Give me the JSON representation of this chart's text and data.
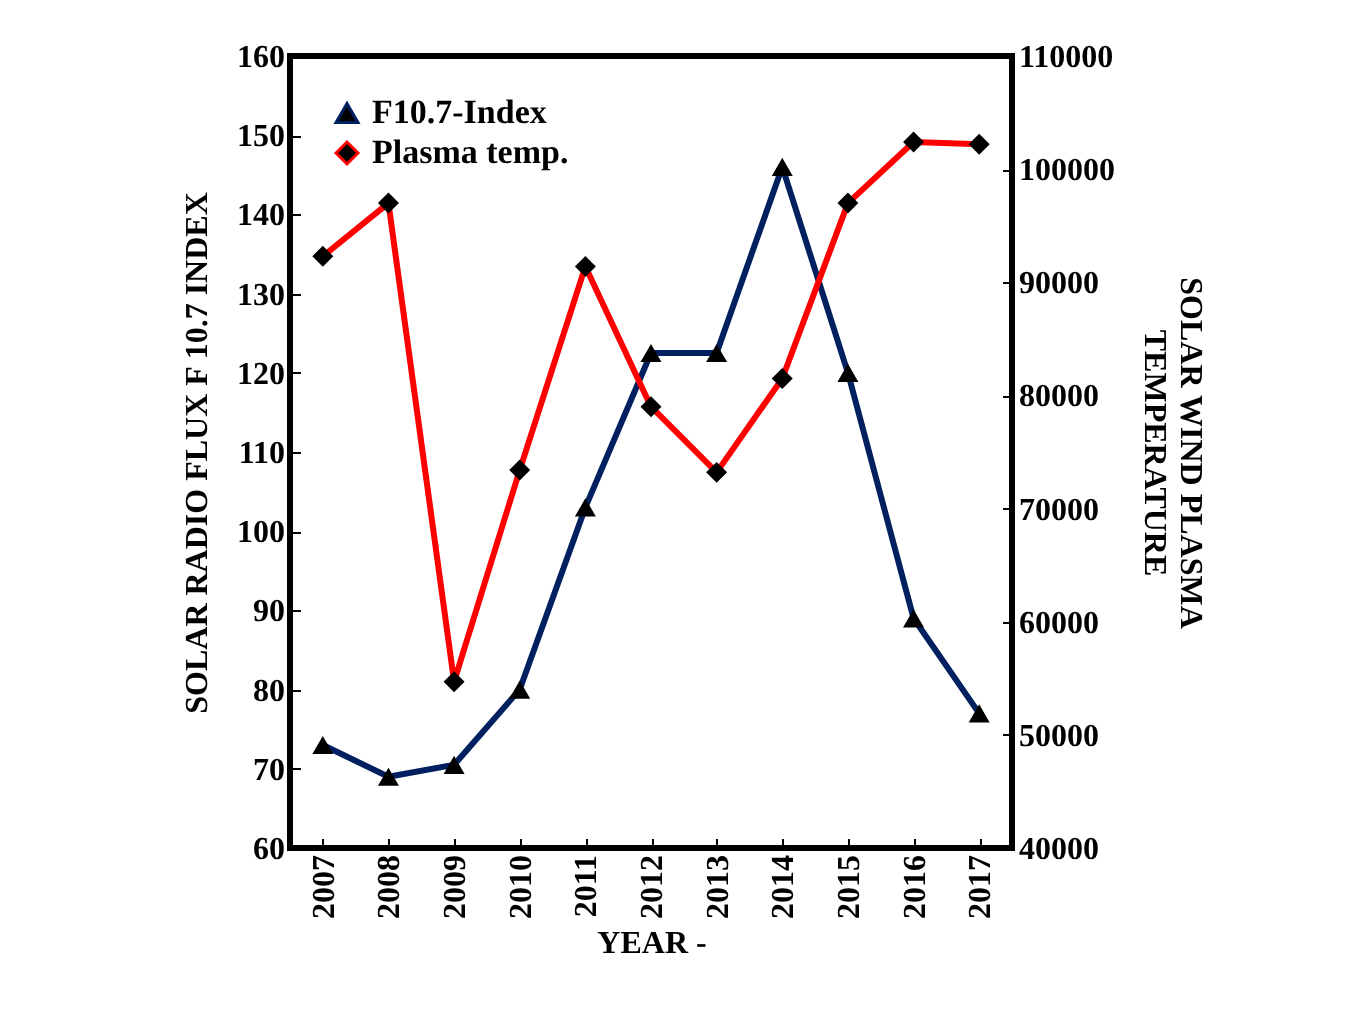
{
  "chart_data": {
    "type": "line",
    "xlabel": "YEAR -",
    "ylabel": "SOLAR  RADIO FLUX F 10.7 INDEX",
    "y2label": "SOLAR WIND PLASMA\nTEMPERATURE",
    "categories": [
      "2007",
      "2008",
      "2009",
      "2010",
      "2011",
      "2012",
      "2013",
      "2014",
      "2015",
      "2016",
      "2017"
    ],
    "series": [
      {
        "name": "F10.7-Index",
        "color": "#002060",
        "marker": "triangle",
        "values": [
          73,
          69,
          70.5,
          80,
          103,
          122.5,
          122.5,
          146,
          120,
          89,
          77
        ]
      },
      {
        "name": "Plasma temp.",
        "color": "#ff0000",
        "marker": "diamond",
        "axis": "y2",
        "values": [
          92300,
          97000,
          54700,
          73400,
          91400,
          79000,
          73200,
          81500,
          97000,
          102400,
          102200
        ]
      }
    ],
    "ylim": [
      60,
      160
    ],
    "yticks": [
      60,
      70,
      80,
      90,
      100,
      110,
      120,
      130,
      140,
      150,
      160
    ],
    "y2lim": [
      40000,
      110000
    ],
    "y2ticks": [
      40000,
      50000,
      60000,
      70000,
      80000,
      90000,
      100000,
      110000
    ],
    "legend": "top left",
    "grid": false,
    "line_style": "solid"
  }
}
